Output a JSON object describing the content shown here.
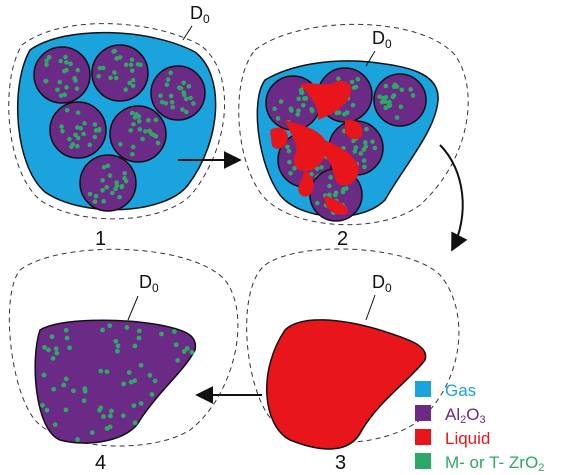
{
  "stages": [
    {
      "number": "1",
      "d0_label": "D",
      "d0_subscript": "0"
    },
    {
      "number": "2",
      "d0_label": "D",
      "d0_subscript": "0"
    },
    {
      "number": "3",
      "d0_label": "D",
      "d0_subscript": "0"
    },
    {
      "number": "4",
      "d0_label": "D",
      "d0_subscript": "0"
    }
  ],
  "legend": [
    {
      "key": "gas",
      "label": "Gas",
      "color": "#1aa3dd",
      "text_color": "#1aa3dd"
    },
    {
      "key": "al2o3",
      "label_main": "Al",
      "label_sub1": "2",
      "label_mid": "O",
      "label_sub2": "3",
      "color": "#6b2a86",
      "text_color": "#6b2a86"
    },
    {
      "key": "liquid",
      "label": "Liquid",
      "color": "#e8161b",
      "text_color": "#e8161b"
    },
    {
      "key": "zro2",
      "label_main": "M- or T- ZrO",
      "label_sub": "2",
      "color": "#2ea866",
      "text_color": "#2ea866"
    }
  ],
  "colors": {
    "gas": "#1aa3dd",
    "al2o3": "#6b2a86",
    "liquid": "#e8161b",
    "zro2": "#2ea866",
    "outline": "#111111"
  }
}
